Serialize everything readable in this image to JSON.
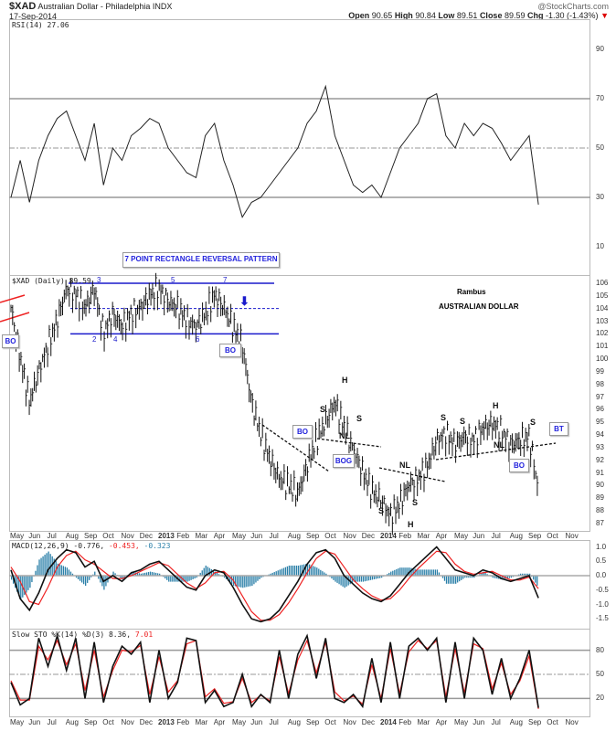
{
  "header": {
    "symbol": "$XAD",
    "name": "Australian Dollar - Philadelphia INDX",
    "date": "17-Sep-2014",
    "brand": "@StockCharts.com",
    "open_label": "Open",
    "open": "90.65",
    "high_label": "High",
    "high": "90.84",
    "low_label": "Low",
    "low": "89.51",
    "close_label": "Close",
    "close": "89.59",
    "chg_label": "Chg",
    "chg": "-1.30 (-1.43%)",
    "chg_arrow": "▼"
  },
  "colors": {
    "rect": "#1a1acc",
    "price": "#111111",
    "signal": "#ee2222",
    "hist": "#2a7fa8",
    "grid": "#999999"
  },
  "annotations": {
    "pattern": "7 POINT RECTANGLE REVERSAL PATTERN",
    "points": [
      "2",
      "3",
      "4",
      "5",
      "6",
      "7"
    ],
    "bo": "BO",
    "bog": "BOG",
    "bt": "BT",
    "s": "S",
    "h": "H",
    "nl": "NL",
    "author": "Rambus",
    "subject": "AUSTRALIAN DOLLAR"
  },
  "chart_data": [
    {
      "type": "line",
      "title": "RSI(14)",
      "legend": "RSI(14) 27.06",
      "yticks": [
        "90",
        "70",
        "50",
        "30",
        "10"
      ],
      "ytick_values": [
        90,
        70,
        50,
        30,
        10
      ],
      "ylim": [
        8,
        100
      ],
      "x_months_from_may_2012_step": 0.5,
      "values": [
        30,
        45,
        28,
        45,
        55,
        62,
        65,
        55,
        45,
        60,
        35,
        50,
        45,
        55,
        58,
        62,
        60,
        50,
        45,
        40,
        38,
        55,
        60,
        45,
        35,
        22,
        28,
        30,
        35,
        40,
        45,
        50,
        60,
        65,
        75,
        55,
        45,
        35,
        32,
        35,
        30,
        40,
        50,
        55,
        60,
        70,
        72,
        55,
        50,
        60,
        55,
        60,
        58,
        52,
        45,
        50,
        55,
        27.06
      ]
    },
    {
      "type": "ohlc",
      "title": "$XAD (Daily)",
      "legend": "$XAD (Daily) 89.59",
      "yticks": [
        "106",
        "105",
        "104",
        "103",
        "102",
        "101",
        "100",
        "99",
        "98",
        "97",
        "96",
        "95",
        "94",
        "93",
        "92",
        "91",
        "90",
        "89",
        "88",
        "87"
      ],
      "ylim": [
        86.5,
        106.6
      ],
      "x_months_from_may_2012_step": 0.5,
      "closes": [
        104,
        100,
        96.5,
        99,
        101,
        103,
        105.5,
        105,
        104,
        105.5,
        102,
        103.5,
        102.5,
        103.5,
        104,
        105,
        105.5,
        104.5,
        104,
        103,
        102.5,
        103.5,
        105,
        104,
        102.5,
        101,
        96.5,
        94,
        92,
        90.5,
        90,
        89.3,
        91.5,
        93.5,
        95,
        96.5,
        94.5,
        92.8,
        91,
        89.5,
        88.8,
        87.5,
        88.5,
        90,
        90.5,
        91.5,
        93.5,
        94,
        93.2,
        93.8,
        93.5,
        94.5,
        94.8,
        94.2,
        93.2,
        93.5,
        93.8,
        89.59
      ],
      "rectangle": {
        "top": 106,
        "middle": 104,
        "bottom": 102
      }
    },
    {
      "type": "line",
      "title": "MACD(12,26,9)",
      "legend_label": "MACD(12,26,9) -0.776,",
      "legend_signal": "-0.453,",
      "legend_hist": "-0.323",
      "yticks": [
        "1.0",
        "0.5",
        "0.0",
        "-0.5",
        "-1.0",
        "-1.5"
      ],
      "ytick_values": [
        1,
        0.5,
        0,
        -0.5,
        -1,
        -1.5
      ],
      "x_months_from_may_2012_step": 0.5,
      "macd": [
        0.2,
        -0.8,
        -1.2,
        -0.6,
        0.2,
        0.6,
        0.9,
        0.8,
        0.3,
        0.5,
        -0.2,
        0,
        -0.2,
        0.1,
        0.2,
        0.4,
        0.5,
        0.2,
        -0.1,
        -0.4,
        -0.5,
        0,
        0.2,
        0.1,
        -0.4,
        -1.0,
        -1.5,
        -1.6,
        -1.5,
        -1.2,
        -0.7,
        -0.2,
        0.4,
        0.8,
        0.9,
        0.6,
        0,
        -0.3,
        -0.6,
        -0.8,
        -0.9,
        -0.7,
        -0.3,
        0.1,
        0.4,
        0.7,
        1.0,
        0.6,
        0.2,
        0.1,
        0.0,
        0.2,
        0.1,
        -0.1,
        -0.2,
        -0.1,
        0.0,
        -0.776
      ],
      "signal": [
        0.3,
        -0.2,
        -0.9,
        -1.0,
        -0.4,
        0.3,
        0.7,
        0.85,
        0.55,
        0.4,
        0.15,
        -0.1,
        -0.1,
        0,
        0.15,
        0.3,
        0.45,
        0.35,
        0.05,
        -0.25,
        -0.45,
        -0.25,
        0.1,
        0.15,
        -0.15,
        -0.7,
        -1.25,
        -1.55,
        -1.55,
        -1.35,
        -0.95,
        -0.45,
        0.1,
        0.6,
        0.85,
        0.75,
        0.3,
        -0.15,
        -0.45,
        -0.7,
        -0.85,
        -0.8,
        -0.5,
        -0.1,
        0.25,
        0.55,
        0.85,
        0.8,
        0.4,
        0.15,
        0.05,
        0.1,
        0.15,
        0,
        -0.15,
        -0.15,
        -0.05,
        -0.453
      ]
    },
    {
      "type": "line",
      "title": "Slow STO %K(14) %D(3)",
      "legend_label": "Slow STO %K(14) %D(3) 8.36,",
      "legend_d": "7.01",
      "yticks": [
        "80",
        "50",
        "20"
      ],
      "ytick_values": [
        80,
        50,
        20
      ],
      "x_months_from_may_2012_step": 0.5,
      "k": [
        40,
        12,
        20,
        95,
        60,
        98,
        55,
        95,
        20,
        90,
        15,
        60,
        85,
        75,
        90,
        15,
        80,
        20,
        40,
        95,
        92,
        15,
        30,
        10,
        15,
        50,
        10,
        25,
        15,
        80,
        20,
        75,
        98,
        45,
        95,
        20,
        15,
        25,
        10,
        70,
        15,
        90,
        20,
        85,
        95,
        80,
        95,
        15,
        90,
        20,
        95,
        80,
        25,
        70,
        20,
        45,
        80,
        8.36
      ],
      "d": [
        42,
        18,
        18,
        85,
        68,
        92,
        62,
        88,
        30,
        80,
        22,
        55,
        80,
        78,
        86,
        25,
        72,
        28,
        42,
        88,
        92,
        22,
        32,
        14,
        16,
        45,
        15,
        24,
        17,
        72,
        26,
        68,
        92,
        52,
        90,
        28,
        17,
        23,
        13,
        62,
        20,
        82,
        26,
        78,
        92,
        82,
        92,
        22,
        82,
        27,
        88,
        82,
        32,
        64,
        25,
        42,
        73,
        7.01
      ]
    }
  ],
  "x_axis": {
    "labels": [
      "May",
      "Jun",
      "Jul",
      "Aug",
      "Sep",
      "Oct",
      "Nov",
      "Dec",
      "2013",
      "Feb",
      "Mar",
      "Apr",
      "May",
      "Jun",
      "Jul",
      "Aug",
      "Sep",
      "Oct",
      "Nov",
      "Dec",
      "2014",
      "Feb",
      "Mar",
      "Apr",
      "May",
      "Jun",
      "Jul",
      "Aug",
      "Sep",
      "Oct",
      "Nov"
    ]
  }
}
